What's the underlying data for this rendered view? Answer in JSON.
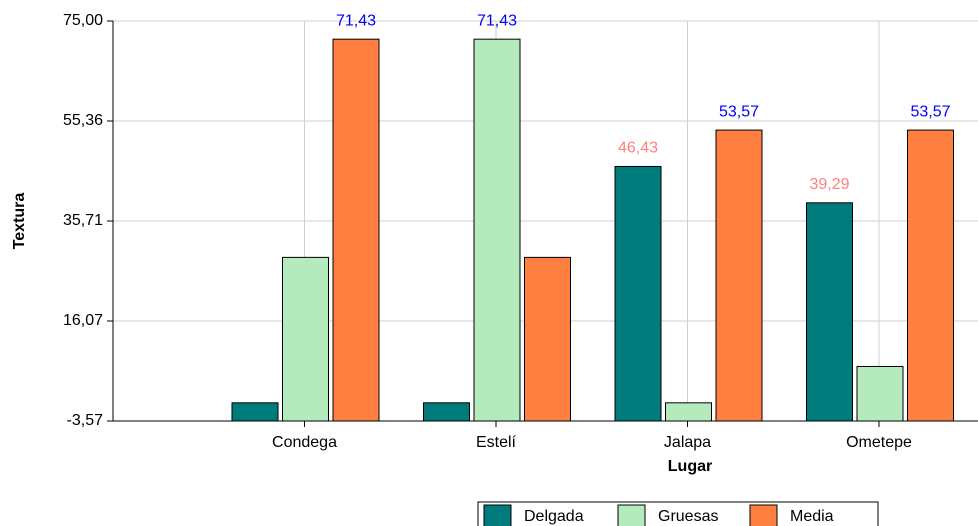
{
  "chart_data": {
    "type": "bar",
    "x_label": "Lugar",
    "y_label": "Textura",
    "categories": [
      "Condega",
      "Estelí",
      "Jalapa",
      "Ometepe"
    ],
    "series": [
      {
        "name": "Delgada",
        "color": "#007b7b",
        "label_color": "#ff7f7f",
        "values": [
          0,
          0,
          46.43,
          39.29
        ],
        "value_labels": [
          null,
          null,
          "46,43",
          "39,29"
        ]
      },
      {
        "name": "Gruesas",
        "color": "#b5eabd",
        "label_color": "#0000ff",
        "values": [
          28.57,
          71.43,
          0,
          7.14
        ],
        "value_labels": [
          null,
          "71,43",
          null,
          null
        ]
      },
      {
        "name": "Media",
        "color": "#ff7f40",
        "label_color": "#0000ff",
        "values": [
          71.43,
          28.57,
          53.57,
          53.57
        ],
        "value_labels": [
          "71,43",
          null,
          "53,57",
          "53,57"
        ]
      }
    ],
    "ylim": [
      -3.57,
      75
    ],
    "yticks": [
      {
        "value": -3.57,
        "label": "-3,57"
      },
      {
        "value": 16.07,
        "label": "16,07"
      },
      {
        "value": 35.71,
        "label": "35,71"
      },
      {
        "value": 55.36,
        "label": "55,36"
      },
      {
        "value": 75,
        "label": "75,00"
      }
    ],
    "grid": true,
    "legend": "bottom"
  }
}
